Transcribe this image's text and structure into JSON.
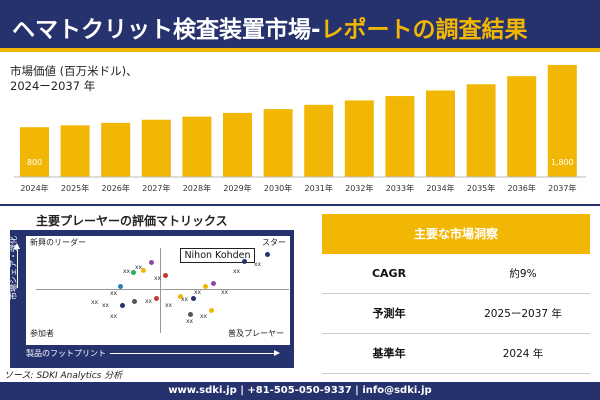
{
  "header": {
    "title_main": "ヘマトクリット検査装置市場-",
    "title_accent": "レポートの調査結果"
  },
  "market_value": {
    "line1": "市場価値 (百万米ドル)、",
    "line2": "2024ー2037 年"
  },
  "chart_data": {
    "type": "bar",
    "categories": [
      "2024年",
      "2025年",
      "2026年",
      "2027年",
      "2028年",
      "2029年",
      "2030年",
      "2031年",
      "2032年",
      "2033年",
      "2034年",
      "2035年",
      "2036年",
      "2037年"
    ],
    "values": [
      800,
      830,
      870,
      920,
      970,
      1030,
      1090,
      1160,
      1230,
      1300,
      1390,
      1490,
      1620,
      1800
    ],
    "data_labels": {
      "0": "800",
      "13": "1,800"
    },
    "bar_color": "#f2b705",
    "ylim": [
      0,
      1900
    ]
  },
  "matrix": {
    "title": "主要プレーヤーの評価マトリックス",
    "top_left": "新興のリーダー",
    "top_right": "スター",
    "bottom_left": "参加者",
    "bottom_right": "普及プレーヤー",
    "highlight": "Nihon Kohden",
    "y_axis": "市場シェア・強化",
    "x_axis": "製品のフットプリント",
    "marker_label": "xx"
  },
  "source": "ソース: SDKI Analytics 分析",
  "panel": {
    "title": "主要な市場洞察",
    "rows": [
      {
        "key": "CAGR",
        "value": "約9%"
      },
      {
        "key": "予測年",
        "value": "2025ー2037 年"
      },
      {
        "key": "基準年",
        "value": "2024 年"
      }
    ]
  },
  "footer": "www.sdki.jp | +81-505-050-9337 | info@sdki.jp"
}
